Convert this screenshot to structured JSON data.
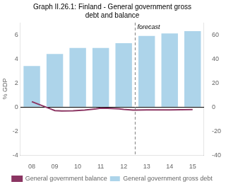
{
  "chart_data": {
    "type": "bar",
    "title": "Graph II.26.1: Finland - General government gross\ndebt and balance",
    "y_label": "% GDP",
    "series": [
      {
        "name": "General government gross debt",
        "type": "bar",
        "color": "#add4ea",
        "x": [
          8,
          9,
          10,
          11,
          12,
          13,
          14,
          15
        ],
        "values": [
          3.4,
          4.4,
          4.9,
          4.9,
          5.3,
          5.9,
          6.1,
          6.3
        ]
      },
      {
        "name": "General government balance",
        "type": "line",
        "color": "#8b3562",
        "axis": "y2",
        "x": [
          8.0,
          8.4,
          8.8,
          9.0,
          9.3,
          9.8,
          10.3,
          10.8,
          11.0,
          11.3,
          11.8,
          12.0,
          12.4,
          12.5,
          13.0,
          13.5,
          14.0,
          14.5,
          15.0
        ],
        "values": [
          4.4,
          1.5,
          -1.5,
          -3.0,
          -3.3,
          -3.2,
          -2.5,
          -1.5,
          -1.0,
          -1.1,
          -1.5,
          -2.0,
          -2.5,
          -2.5,
          -2.45,
          -2.4,
          -2.35,
          -2.3,
          -2.2
        ]
      }
    ],
    "xlim": [
      7.5,
      15.5
    ],
    "xticks": [
      {
        "value": 8,
        "label": "08"
      },
      {
        "value": 9,
        "label": "09"
      },
      {
        "value": 10,
        "label": "10"
      },
      {
        "value": 11,
        "label": "11"
      },
      {
        "value": 12,
        "label": "12"
      },
      {
        "value": 13,
        "label": "13"
      },
      {
        "value": 14,
        "label": "14"
      },
      {
        "value": 15,
        "label": "15"
      }
    ],
    "ylim": [
      -4,
      7
    ],
    "yticks": [
      -4,
      -2,
      0,
      2,
      4,
      6
    ],
    "y2lim": [
      -40,
      70
    ],
    "y2ticks": [
      -40,
      -20,
      0,
      20,
      40,
      60
    ],
    "annotations": [
      {
        "x": 12.5,
        "text": "forecast"
      }
    ],
    "grid": false,
    "legend": "bottom"
  }
}
